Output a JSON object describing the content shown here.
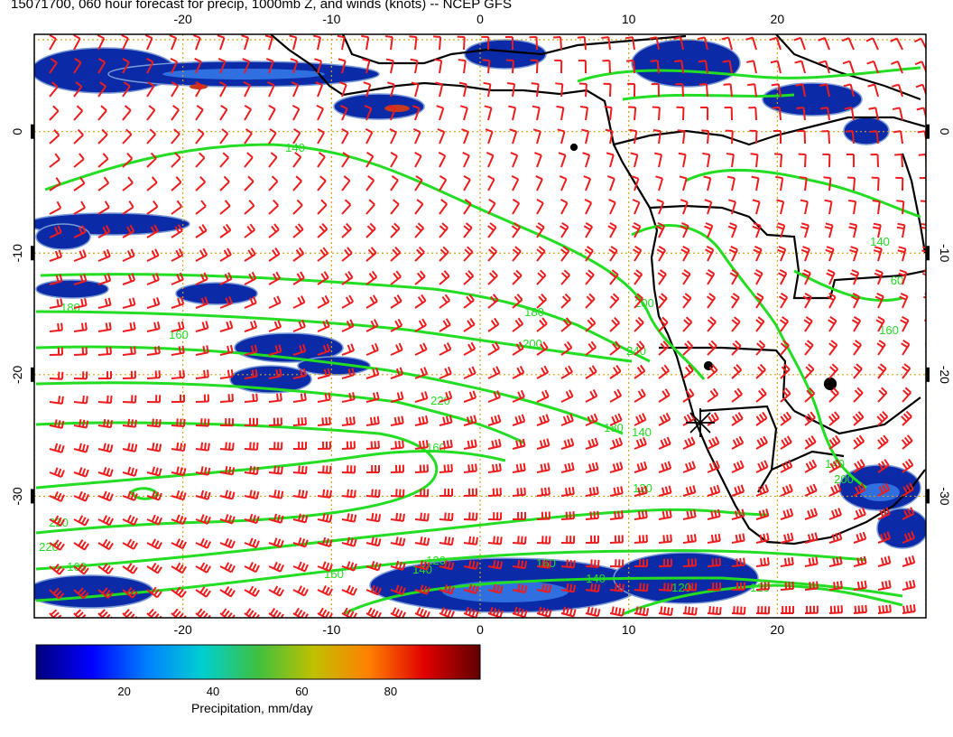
{
  "title": "15071700, 060 hour forecast for precip, 1000mb Z, and winds (knots) -- NCEP GFS",
  "map": {
    "lon_range": [
      -30,
      30
    ],
    "lat_range": [
      -40,
      8
    ],
    "lon_ticks": [
      "-20",
      "-10",
      "0",
      "10",
      "20"
    ],
    "lat_ticks": [
      "0",
      "-10",
      "-20",
      "-30"
    ],
    "grid": true,
    "colors": {
      "contour": "#22dd22",
      "wind_barb": "#ee1c1c",
      "gridline": "#d4a017",
      "coast": "#000000"
    },
    "contour_labels": [
      "140",
      "180",
      "160",
      "180",
      "200",
      "220",
      "180",
      "160",
      "140",
      "120",
      "200",
      "240",
      "200",
      "140",
      "220",
      "220",
      "160",
      "140",
      "120",
      "160",
      "140",
      "120",
      "120",
      "160",
      "160",
      "140",
      "60"
    ],
    "marker": "asterisk-star",
    "marker_location": [
      15,
      -24
    ]
  },
  "colorbar": {
    "title": "Precipitation, mm/day",
    "ticks": [
      "20",
      "40",
      "60",
      "80"
    ],
    "tick_values": [
      20,
      40,
      60,
      80
    ],
    "range": [
      0,
      100
    ],
    "stops": [
      "#00007a",
      "#0000ff",
      "#0080ff",
      "#00d0d0",
      "#40c040",
      "#c0c000",
      "#ff8000",
      "#e00000",
      "#600000"
    ]
  }
}
